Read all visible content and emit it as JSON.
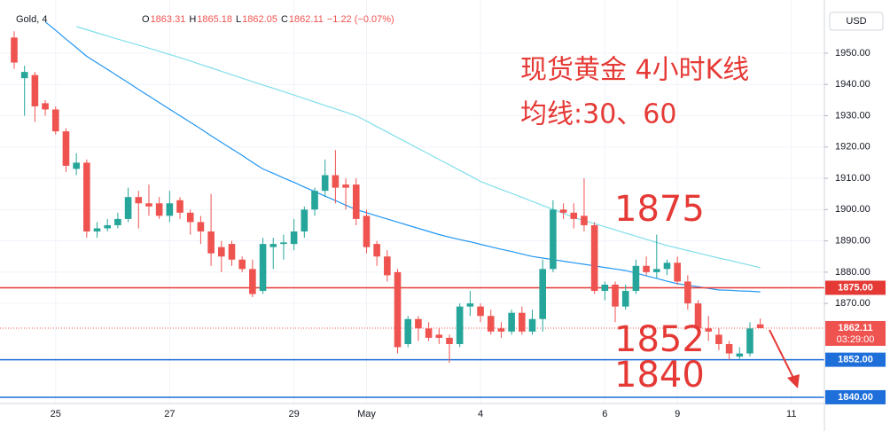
{
  "header": {
    "symbol": "Gold, 4",
    "fields": [
      {
        "key": "O",
        "value": "1863.31"
      },
      {
        "key": "H",
        "value": "1865.18"
      },
      {
        "key": "L",
        "value": "1862.05"
      },
      {
        "key": "C",
        "value": "1862.11"
      }
    ],
    "change": "−1.22 (−0.07%)"
  },
  "chart_data": {
    "type": "candlestick",
    "currency": "USD",
    "annotations": [
      "现货黄金 4小时K线",
      "均线:30、60",
      "1875",
      "1852",
      "1840"
    ],
    "categories": [
      null,
      null,
      null,
      null,
      "25",
      null,
      null,
      null,
      null,
      null,
      null,
      null,
      null,
      null,
      null,
      "27",
      null,
      null,
      null,
      null,
      null,
      null,
      null,
      null,
      null,
      null,
      null,
      "29",
      null,
      null,
      null,
      null,
      null,
      null,
      "May",
      null,
      null,
      null,
      null,
      null,
      null,
      null,
      null,
      null,
      null,
      "4",
      null,
      null,
      null,
      null,
      null,
      null,
      null,
      null,
      null,
      null,
      null,
      "6",
      null,
      null,
      null,
      null,
      null,
      null,
      "9",
      null,
      null,
      null,
      null,
      null,
      null,
      null,
      null,
      null,
      null,
      "11"
    ],
    "open": [
      1955,
      1942,
      1943,
      1934,
      1932,
      1925,
      1913,
      1915,
      1893,
      1894,
      1895,
      1897,
      1904,
      1902,
      1902,
      1898,
      1903,
      1899,
      1896,
      1893,
      1888,
      1889,
      1884,
      1881,
      1874,
      1888,
      1889,
      1889,
      1893,
      1900,
      1906,
      1911,
      1908,
      1908,
      1898,
      1889,
      1885,
      1880,
      1857,
      1865,
      1862,
      1860,
      1859,
      1857,
      1869,
      1869,
      1866,
      1862,
      1861,
      1867,
      1861,
      1865,
      1881,
      1900,
      1899,
      1898,
      1895,
      1874,
      1876,
      1869,
      1874,
      1882,
      1880,
      1881,
      1883,
      1877,
      1870,
      1862,
      1860,
      1857,
      1853,
      1854,
      1863.31,
      null,
      null,
      null
    ],
    "high": [
      1957,
      1946,
      1944,
      1935,
      1933,
      1926,
      1918,
      1916,
      1896,
      1897,
      1899,
      1907,
      1906,
      1908,
      1904,
      1906,
      1904,
      1900,
      1898,
      1905,
      1890,
      1890,
      1885,
      1884,
      1891,
      1891,
      1892,
      1897,
      1901,
      1907,
      1916,
      1919,
      1910,
      1910,
      1900,
      1890,
      1887,
      1881,
      1866,
      1866,
      1864,
      1862,
      1860,
      1870,
      1874,
      1870,
      1868,
      1864,
      1868,
      1869,
      1868,
      1884,
      1903,
      1902,
      1902,
      1910,
      1896,
      1877,
      1877,
      1876,
      1884,
      1885,
      1892,
      1884,
      1885,
      1879,
      1871,
      1866,
      1862,
      1858,
      1856,
      1864,
      1865.18,
      null,
      null,
      null
    ],
    "low": [
      1945,
      1930,
      1928,
      1930,
      1924,
      1912,
      1911,
      1891,
      1891,
      1893,
      1894,
      1896,
      1894,
      1898,
      1897,
      1896,
      1897,
      1892,
      1889,
      1882,
      1880,
      1882,
      1880,
      1872,
      1873,
      1881,
      1884,
      1887,
      1891,
      1898,
      1904,
      1902,
      1900,
      1895,
      1886,
      1882,
      1877,
      1854,
      1856,
      1858,
      1858,
      1857,
      1851,
      1856,
      1866,
      1864,
      1860,
      1859,
      1860,
      1860,
      1860,
      1861,
      1880,
      1897,
      1894,
      1893,
      1873,
      1871,
      1864,
      1868,
      1873,
      1879,
      1878,
      1879,
      1876,
      1868,
      1861,
      1858,
      1855,
      1852,
      1852,
      1853,
      1862.05,
      null,
      null,
      null
    ],
    "close": [
      1947,
      1944,
      1933,
      1932,
      1925,
      1914,
      1915,
      1893,
      1894,
      1895,
      1897,
      1904,
      1902,
      1901,
      1898,
      1902,
      1899,
      1896,
      1893,
      1886,
      1885,
      1884,
      1881,
      1873,
      1889,
      1889,
      1889.5,
      1893,
      1900,
      1906,
      1911,
      1907,
      1907,
      1897,
      1888,
      1885,
      1879,
      1856,
      1865,
      1862,
      1859,
      1859,
      1857,
      1869,
      1870,
      1866,
      1861,
      1861,
      1867,
      1861,
      1865,
      1881,
      1900,
      1899,
      1897,
      1895,
      1874,
      1876,
      1869,
      1874,
      1882,
      1880,
      1881,
      1883,
      1877,
      1870,
      1862,
      1861,
      1857,
      1854,
      1854,
      1862,
      1862.11,
      null,
      null,
      null
    ],
    "up_color": "#26a69a",
    "down_color": "#ef5350",
    "overlays": [
      {
        "color": "#2196f3",
        "values": [
          null,
          null,
          null,
          1960,
          1957.3,
          1954.5,
          1951.8,
          1949,
          1946.9,
          1944.8,
          1942.7,
          1940.6,
          1938.4,
          1936.3,
          1934.2,
          1932.1,
          1930,
          1927.9,
          1925.8,
          1923.6,
          1921.5,
          1919.4,
          1917.3,
          1915.1,
          1913,
          1911.6,
          1910.1,
          1908.7,
          1907.2,
          1905.8,
          1904.3,
          1902.9,
          1901.4,
          1900,
          1899,
          1898,
          1897,
          1896,
          1895,
          1894,
          1893,
          1892,
          1891.2,
          1890.4,
          1889.7,
          1888.9,
          1888.1,
          1887.3,
          1886.6,
          1885.8,
          1885,
          1884.5,
          1884,
          1883.5,
          1883,
          1882.5,
          1882,
          1881.5,
          1881,
          1880.5,
          1879.7,
          1878.8,
          1878,
          1877.1,
          1876.3,
          1875.8,
          1875.3,
          1874.8,
          1874.3,
          1874.2,
          1874,
          1873.9,
          1873.7,
          null,
          null,
          null
        ]
      },
      {
        "color": "#80deea",
        "values": [
          null,
          null,
          null,
          null,
          null,
          null,
          1958.5,
          1957.5,
          1956.5,
          1955.5,
          1954.5,
          1953.5,
          1952.6,
          1951.6,
          1950.6,
          1949.6,
          1948.6,
          1947.5,
          1946.4,
          1945.3,
          1944.2,
          1943.1,
          1942,
          1940.9,
          1939.8,
          1938.8,
          1937.7,
          1936.6,
          1935.5,
          1934.4,
          1933.3,
          1932.2,
          1931.1,
          1930,
          1928.3,
          1926.5,
          1924.8,
          1923,
          1921.3,
          1919.5,
          1917.8,
          1916,
          1914.3,
          1912.5,
          1910.8,
          1909,
          1907.7,
          1906.4,
          1905.2,
          1903.9,
          1902.6,
          1901.3,
          1900.1,
          1898.8,
          1897.5,
          1896.5,
          1895.5,
          1894.5,
          1893.5,
          1892.5,
          1891.5,
          1890.5,
          1889.5,
          1888.5,
          1887.7,
          1886.9,
          1886.1,
          1885.3,
          1884.5,
          1883.8,
          1883,
          1882.2,
          1881.4,
          null,
          null,
          null
        ]
      }
    ],
    "levels": [
      {
        "value": 1875,
        "label": "1875.00",
        "color": "#e53935"
      },
      {
        "value": 1852,
        "label": "1852.00",
        "color": "#1e6fd9"
      },
      {
        "value": 1840,
        "label": "1840.00",
        "color": "#1e6fd9"
      }
    ],
    "last_price": {
      "value": 1862.11,
      "label": "1862.11",
      "countdown": "03:29:00",
      "color": "#ef5350"
    },
    "ylim": [
      1838,
      1967
    ],
    "yticks": [
      {
        "value": 1870,
        "label": "1870.00"
      },
      {
        "value": 1880,
        "label": "1880.00"
      },
      {
        "value": 1890,
        "label": "1890.00"
      },
      {
        "value": 1900,
        "label": "1900.00"
      },
      {
        "value": 1910,
        "label": "1910.00"
      },
      {
        "value": 1920,
        "label": "1920.00"
      },
      {
        "value": 1930,
        "label": "1930.00"
      },
      {
        "value": 1940,
        "label": "1940.00"
      },
      {
        "value": 1950,
        "label": "1950.00"
      }
    ]
  }
}
